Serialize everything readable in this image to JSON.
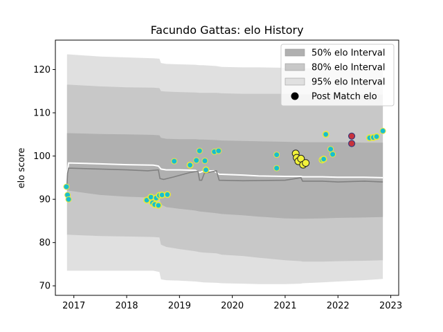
{
  "chart_data": {
    "type": "scatter",
    "title": "Facundo Gattas: elo History",
    "xlabel": "",
    "ylabel": "elo score",
    "xlim": [
      2016.65,
      2023.15
    ],
    "ylim": [
      67.8,
      126.8
    ],
    "x_ticks": [
      2017,
      2018,
      2019,
      2020,
      2021,
      2022,
      2023
    ],
    "y_ticks": [
      70,
      80,
      90,
      100,
      110,
      120
    ],
    "grid": false,
    "legend_position": "top-right",
    "legend": [
      {
        "label": "50% elo Interval",
        "kind": "band",
        "color": "#b0b0b0"
      },
      {
        "label": "80% elo Interval",
        "kind": "band",
        "color": "#c8c8c8"
      },
      {
        "label": "95% elo Interval",
        "kind": "band",
        "color": "#e0e0e0"
      },
      {
        "label": "Post Match elo",
        "kind": "marker",
        "color": "#000000"
      }
    ],
    "colors": {
      "band50": "#b0b0b0",
      "band80": "#c8c8c8",
      "band95": "#e0e0e0",
      "median_line": "#ffffff",
      "mean_line": "#808080",
      "marker_teal": "#17becf",
      "marker_yellow_edge": "#e8e83a",
      "marker_yellow_fill": "#f2f23a",
      "marker_red": "#c8323c"
    },
    "bands": {
      "x": [
        2016.87,
        2016.9,
        2017.5,
        2018.0,
        2018.5,
        2018.62,
        2018.65,
        2018.75,
        2019.0,
        2019.3,
        2019.38,
        2019.45,
        2019.7,
        2019.8,
        2020.2,
        2020.5,
        2021.0,
        2021.3,
        2021.33,
        2021.7,
        2022.0,
        2022.5,
        2022.85
      ],
      "p95_hi": [
        123.5,
        123.5,
        123.0,
        122.8,
        122.6,
        122.5,
        121.5,
        121.3,
        121.2,
        121.1,
        121.0,
        121.0,
        120.8,
        120.6,
        120.5,
        120.5,
        120.4,
        120.3,
        120.3,
        120.3,
        120.3,
        120.3,
        120.2
      ],
      "p80_hi": [
        116.5,
        116.5,
        116.1,
        115.9,
        115.8,
        115.7,
        115.0,
        114.9,
        114.8,
        114.7,
        114.6,
        114.6,
        114.6,
        114.5,
        114.4,
        114.4,
        114.4,
        114.3,
        114.3,
        114.3,
        114.3,
        114.3,
        114.2
      ],
      "p50_hi": [
        105.3,
        105.3,
        105.1,
        105.0,
        104.9,
        104.8,
        104.2,
        104.0,
        103.9,
        103.9,
        103.8,
        103.8,
        103.7,
        103.6,
        103.5,
        103.4,
        103.3,
        103.2,
        103.2,
        103.2,
        103.2,
        103.1,
        103.1
      ],
      "p50_lo": [
        92.0,
        92.0,
        91.0,
        90.6,
        90.4,
        90.3,
        88.8,
        88.2,
        87.8,
        87.4,
        87.2,
        87.1,
        86.8,
        86.6,
        86.3,
        86.0,
        85.6,
        85.5,
        85.5,
        85.6,
        85.7,
        85.8,
        85.9
      ],
      "p80_lo": [
        81.8,
        81.8,
        81.5,
        81.4,
        81.3,
        81.2,
        79.5,
        79.0,
        78.5,
        78.0,
        77.8,
        77.7,
        77.5,
        77.2,
        76.9,
        76.5,
        75.9,
        75.7,
        75.6,
        75.6,
        75.7,
        75.8,
        75.9
      ],
      "p95_lo": [
        73.5,
        73.5,
        73.5,
        73.5,
        73.5,
        73.2,
        71.5,
        71.3,
        71.2,
        71.0,
        70.9,
        70.8,
        70.7,
        70.6,
        70.5,
        70.4,
        70.4,
        70.5,
        70.6,
        70.8,
        71.0,
        71.3,
        71.6
      ]
    },
    "median_line": {
      "x": [
        2016.87,
        2016.9,
        2017.5,
        2018.0,
        2018.5,
        2018.6,
        2018.65,
        2018.75,
        2019.0,
        2019.3,
        2019.38,
        2019.45,
        2019.65,
        2019.75,
        2020.2,
        2020.5,
        2021.0,
        2021.3,
        2021.33,
        2021.7,
        2022.0,
        2022.5,
        2022.85
      ],
      "y": [
        95.5,
        98.4,
        98.2,
        98.0,
        97.9,
        97.7,
        97.0,
        96.8,
        96.8,
        96.7,
        96.2,
        96.5,
        96.6,
        95.8,
        95.6,
        95.4,
        95.3,
        95.3,
        95.2,
        95.2,
        95.1,
        95.1,
        95.0
      ]
    },
    "mean_line": {
      "x": [
        2016.87,
        2016.88,
        2016.9,
        2017.5,
        2018.0,
        2018.4,
        2018.6,
        2018.63,
        2018.7,
        2018.9,
        2019.2,
        2019.35,
        2019.38,
        2019.42,
        2019.47,
        2019.7,
        2019.75,
        2020.2,
        2021.0,
        2021.3,
        2021.33,
        2021.7,
        2022.0,
        2022.5,
        2022.85
      ],
      "y": [
        93.5,
        96.0,
        97.2,
        97.0,
        96.8,
        96.6,
        96.8,
        94.8,
        94.6,
        95.2,
        96.2,
        96.5,
        94.4,
        94.4,
        96.0,
        96.6,
        94.4,
        94.3,
        94.4,
        95.0,
        94.2,
        94.2,
        94.0,
        94.2,
        94.0
      ]
    },
    "points": [
      {
        "x": 2016.86,
        "y": 92.9,
        "style": "teal"
      },
      {
        "x": 2016.88,
        "y": 91.0,
        "style": "teal"
      },
      {
        "x": 2016.9,
        "y": 90.0,
        "style": "teal"
      },
      {
        "x": 2018.38,
        "y": 89.8,
        "style": "yellow"
      },
      {
        "x": 2018.46,
        "y": 90.5,
        "style": "yellow"
      },
      {
        "x": 2018.49,
        "y": 89.2,
        "style": "yellow"
      },
      {
        "x": 2018.53,
        "y": 88.8,
        "style": "yellow"
      },
      {
        "x": 2018.56,
        "y": 90.3,
        "style": "yellow"
      },
      {
        "x": 2018.6,
        "y": 88.6,
        "style": "yellow"
      },
      {
        "x": 2018.62,
        "y": 90.9,
        "style": "yellow"
      },
      {
        "x": 2018.67,
        "y": 91.0,
        "style": "yellow"
      },
      {
        "x": 2018.77,
        "y": 91.1,
        "style": "yellow"
      },
      {
        "x": 2018.9,
        "y": 98.8,
        "style": "teal"
      },
      {
        "x": 2019.2,
        "y": 97.9,
        "style": "yellow"
      },
      {
        "x": 2019.32,
        "y": 99.0,
        "style": "teal"
      },
      {
        "x": 2019.38,
        "y": 101.2,
        "style": "teal"
      },
      {
        "x": 2019.48,
        "y": 98.9,
        "style": "teal"
      },
      {
        "x": 2019.5,
        "y": 96.8,
        "style": "yellow"
      },
      {
        "x": 2019.66,
        "y": 101.0,
        "style": "teal"
      },
      {
        "x": 2019.74,
        "y": 101.2,
        "style": "teal"
      },
      {
        "x": 2020.84,
        "y": 100.3,
        "style": "teal"
      },
      {
        "x": 2020.84,
        "y": 97.2,
        "style": "teal"
      },
      {
        "x": 2021.2,
        "y": 100.6,
        "style": "yellow_full"
      },
      {
        "x": 2021.22,
        "y": 99.6,
        "style": "yellow_full"
      },
      {
        "x": 2021.25,
        "y": 98.8,
        "style": "yellow_full"
      },
      {
        "x": 2021.3,
        "y": 99.4,
        "style": "yellow_full"
      },
      {
        "x": 2021.34,
        "y": 98.0,
        "style": "yellow_full"
      },
      {
        "x": 2021.39,
        "y": 98.4,
        "style": "yellow_full"
      },
      {
        "x": 2021.7,
        "y": 99.1,
        "style": "yellow"
      },
      {
        "x": 2021.73,
        "y": 99.3,
        "style": "yellow"
      },
      {
        "x": 2021.77,
        "y": 105.0,
        "style": "yellow"
      },
      {
        "x": 2021.86,
        "y": 101.6,
        "style": "teal"
      },
      {
        "x": 2021.9,
        "y": 100.4,
        "style": "teal"
      },
      {
        "x": 2022.26,
        "y": 104.6,
        "style": "red"
      },
      {
        "x": 2022.26,
        "y": 102.9,
        "style": "red"
      },
      {
        "x": 2022.6,
        "y": 104.2,
        "style": "yellow"
      },
      {
        "x": 2022.67,
        "y": 104.3,
        "style": "yellow"
      },
      {
        "x": 2022.73,
        "y": 104.5,
        "style": "yellow"
      },
      {
        "x": 2022.85,
        "y": 105.8,
        "style": "teal"
      }
    ]
  }
}
